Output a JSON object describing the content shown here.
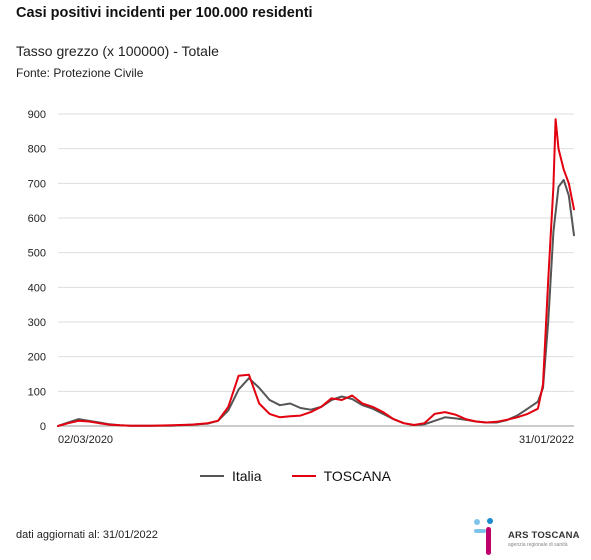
{
  "header": {
    "title": "Casi positivi incidenti per 100.000 residenti",
    "subtitle": "Tasso grezzo (x 100000) - Totale",
    "source": "Fonte: Protezione Civile"
  },
  "footer": {
    "updated": "dati aggiornati al: 31/01/2022",
    "logo_text": "ARS TOSCANA",
    "logo_sub": "agenzia regionale di sanità"
  },
  "chart_data": {
    "type": "line",
    "title": "Casi positivi incidenti per 100.000 residenti",
    "subtitle": "Tasso grezzo (x 100000) - Totale",
    "ylim": [
      0,
      900
    ],
    "yticks": [
      0,
      100,
      200,
      300,
      400,
      500,
      600,
      700,
      800,
      900
    ],
    "xtick_labels": [
      "02/03/2020",
      "31/01/2022"
    ],
    "x_range": [
      "2020-03-02",
      "2022-01-31"
    ],
    "grid": "horizontal",
    "legend_position": "bottom",
    "series": [
      {
        "name": "Italia",
        "color": "#555555",
        "points": [
          [
            "2020-03-02",
            0
          ],
          [
            "2020-03-16",
            10
          ],
          [
            "2020-03-30",
            20
          ],
          [
            "2020-04-13",
            15
          ],
          [
            "2020-04-27",
            10
          ],
          [
            "2020-05-11",
            5
          ],
          [
            "2020-05-25",
            2
          ],
          [
            "2020-06-08",
            1
          ],
          [
            "2020-07-06",
            1
          ],
          [
            "2020-08-03",
            1
          ],
          [
            "2020-08-31",
            4
          ],
          [
            "2020-09-21",
            7
          ],
          [
            "2020-10-05",
            15
          ],
          [
            "2020-10-19",
            45
          ],
          [
            "2020-11-02",
            105
          ],
          [
            "2020-11-16",
            138
          ],
          [
            "2020-11-30",
            110
          ],
          [
            "2020-12-14",
            75
          ],
          [
            "2020-12-28",
            60
          ],
          [
            "2021-01-11",
            65
          ],
          [
            "2021-01-25",
            52
          ],
          [
            "2021-02-08",
            47
          ],
          [
            "2021-02-22",
            55
          ],
          [
            "2021-03-08",
            75
          ],
          [
            "2021-03-22",
            85
          ],
          [
            "2021-04-05",
            78
          ],
          [
            "2021-04-19",
            60
          ],
          [
            "2021-05-03",
            50
          ],
          [
            "2021-05-17",
            35
          ],
          [
            "2021-05-31",
            20
          ],
          [
            "2021-06-14",
            8
          ],
          [
            "2021-06-28",
            3
          ],
          [
            "2021-07-12",
            5
          ],
          [
            "2021-07-26",
            15
          ],
          [
            "2021-08-09",
            25
          ],
          [
            "2021-08-23",
            22
          ],
          [
            "2021-09-06",
            18
          ],
          [
            "2021-09-20",
            13
          ],
          [
            "2021-10-04",
            10
          ],
          [
            "2021-10-18",
            10
          ],
          [
            "2021-11-01",
            17
          ],
          [
            "2021-11-15",
            30
          ],
          [
            "2021-11-29",
            50
          ],
          [
            "2021-12-13",
            70
          ],
          [
            "2021-12-20",
            110
          ],
          [
            "2021-12-27",
            300
          ],
          [
            "2022-01-03",
            560
          ],
          [
            "2022-01-10",
            690
          ],
          [
            "2022-01-17",
            710
          ],
          [
            "2022-01-24",
            665
          ],
          [
            "2022-01-31",
            550
          ]
        ]
      },
      {
        "name": "TOSCANA",
        "color": "#e3000f",
        "points": [
          [
            "2020-03-02",
            0
          ],
          [
            "2020-03-16",
            8
          ],
          [
            "2020-03-30",
            15
          ],
          [
            "2020-04-13",
            13
          ],
          [
            "2020-04-27",
            8
          ],
          [
            "2020-05-11",
            4
          ],
          [
            "2020-05-25",
            2
          ],
          [
            "2020-06-08",
            1
          ],
          [
            "2020-07-06",
            1
          ],
          [
            "2020-08-03",
            2
          ],
          [
            "2020-08-31",
            4
          ],
          [
            "2020-09-21",
            8
          ],
          [
            "2020-10-05",
            15
          ],
          [
            "2020-10-19",
            55
          ],
          [
            "2020-11-02",
            145
          ],
          [
            "2020-11-16",
            148
          ],
          [
            "2020-11-30",
            65
          ],
          [
            "2020-12-14",
            35
          ],
          [
            "2020-12-28",
            25
          ],
          [
            "2021-01-11",
            28
          ],
          [
            "2021-01-25",
            30
          ],
          [
            "2021-02-08",
            40
          ],
          [
            "2021-02-22",
            55
          ],
          [
            "2021-03-08",
            80
          ],
          [
            "2021-03-22",
            75
          ],
          [
            "2021-04-05",
            88
          ],
          [
            "2021-04-19",
            65
          ],
          [
            "2021-05-03",
            55
          ],
          [
            "2021-05-17",
            40
          ],
          [
            "2021-05-31",
            20
          ],
          [
            "2021-06-14",
            8
          ],
          [
            "2021-06-28",
            3
          ],
          [
            "2021-07-12",
            8
          ],
          [
            "2021-07-26",
            35
          ],
          [
            "2021-08-09",
            40
          ],
          [
            "2021-08-23",
            33
          ],
          [
            "2021-09-06",
            20
          ],
          [
            "2021-09-20",
            13
          ],
          [
            "2021-10-04",
            10
          ],
          [
            "2021-10-18",
            12
          ],
          [
            "2021-11-01",
            18
          ],
          [
            "2021-11-15",
            25
          ],
          [
            "2021-11-29",
            35
          ],
          [
            "2021-12-13",
            50
          ],
          [
            "2021-12-20",
            120
          ],
          [
            "2021-12-27",
            420
          ],
          [
            "2022-01-03",
            690
          ],
          [
            "2022-01-06",
            885
          ],
          [
            "2022-01-10",
            800
          ],
          [
            "2022-01-17",
            740
          ],
          [
            "2022-01-24",
            700
          ],
          [
            "2022-01-31",
            625
          ]
        ]
      }
    ]
  }
}
